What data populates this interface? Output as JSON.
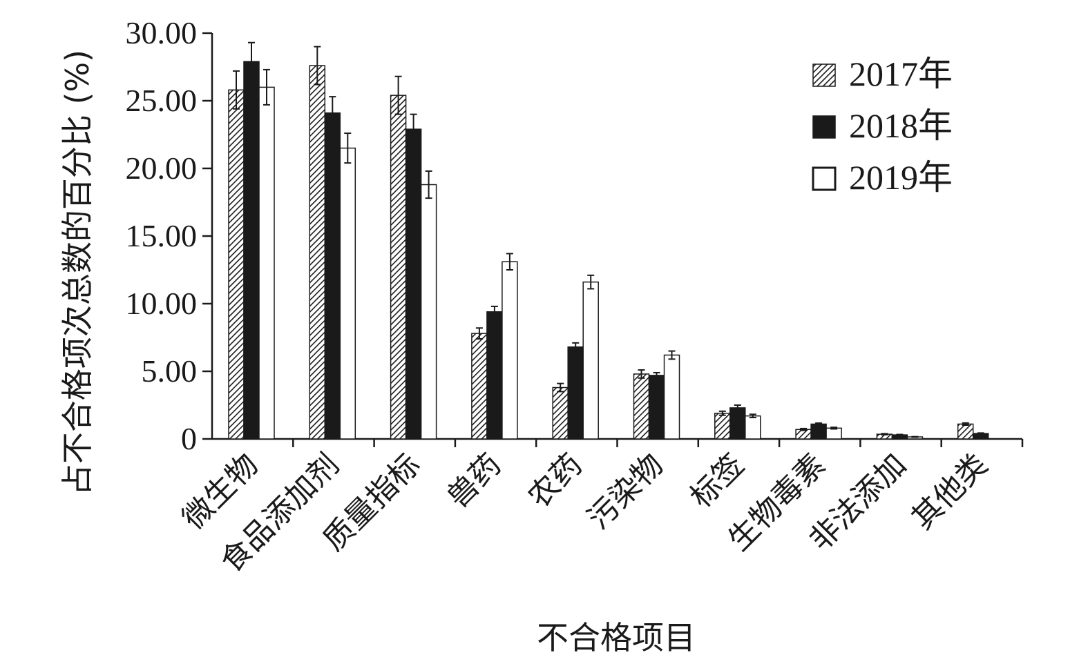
{
  "chart_data": {
    "type": "bar",
    "xlabel": "不合格项目",
    "ylabel": "占不合格项次总数的百分比 (%)",
    "ylim": [
      0,
      30
    ],
    "yticks": [
      0,
      5,
      10,
      15,
      20,
      25,
      30
    ],
    "ytick_labels": [
      "0",
      "5.00",
      "10.00",
      "15.00",
      "20.00",
      "25.00",
      "30.00"
    ],
    "categories": [
      "微生物",
      "食品添加剂",
      "质量指标",
      "兽药",
      "农药",
      "污染物",
      "标签",
      "生物毒素",
      "非法添加",
      "其他类"
    ],
    "legend_position": "top-right",
    "grid": false,
    "series": [
      {
        "name": "2017年",
        "fill": "hatched",
        "color": "#1a1a1a",
        "values": [
          25.8,
          27.6,
          25.4,
          7.8,
          3.8,
          4.8,
          1.9,
          0.7,
          0.35,
          1.1
        ],
        "errors": [
          1.4,
          1.4,
          1.4,
          0.4,
          0.3,
          0.3,
          0.15,
          0.07,
          0.04,
          0.08
        ]
      },
      {
        "name": "2018年",
        "fill": "solid",
        "color": "#1a1a1a",
        "values": [
          27.9,
          24.1,
          22.9,
          9.4,
          6.8,
          4.7,
          2.3,
          1.1,
          0.3,
          0.4
        ],
        "errors": [
          1.4,
          1.2,
          1.1,
          0.4,
          0.3,
          0.2,
          0.2,
          0.07,
          0.03,
          0.04
        ]
      },
      {
        "name": "2019年",
        "fill": "hollow",
        "color": "#ffffff",
        "values": [
          26.0,
          21.5,
          18.8,
          13.1,
          11.6,
          6.2,
          1.7,
          0.8,
          0.15,
          0.0
        ],
        "errors": [
          1.3,
          1.1,
          1.0,
          0.6,
          0.5,
          0.3,
          0.12,
          0.06,
          0.02,
          0.0
        ]
      }
    ]
  }
}
